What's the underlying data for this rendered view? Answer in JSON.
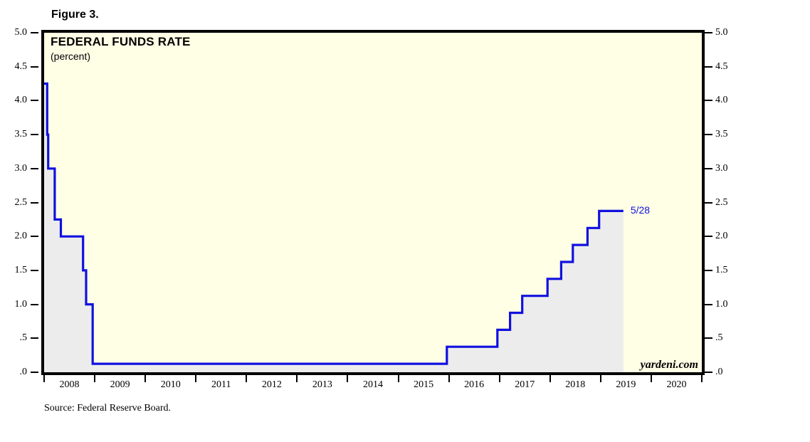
{
  "figure_label": "Figure 3.",
  "source_note": "Source: Federal Reserve Board.",
  "branding": {
    "watermark": "yardeni.com"
  },
  "chart_data": {
    "type": "line",
    "title": "FEDERAL FUNDS RATE",
    "subtitle": "(percent)",
    "line_style": "step-after",
    "grid": "off",
    "legend": "none",
    "x_domain": [
      2008,
      2021
    ],
    "y_domain": [
      0,
      5
    ],
    "y_tick_values": [
      5.0,
      4.5,
      4.0,
      3.5,
      3.0,
      2.5,
      2.0,
      1.5,
      1.0,
      0.5,
      0.0
    ],
    "y_tick_labels": [
      "5.0",
      "4.5",
      "4.0",
      "3.5",
      "3.0",
      "2.5",
      "2.0",
      "1.5",
      "1.0",
      ".5",
      ".0"
    ],
    "x_tick_years": [
      2008,
      2009,
      2010,
      2011,
      2012,
      2013,
      2014,
      2015,
      2016,
      2017,
      2018,
      2019,
      2020,
      2021
    ],
    "x_tick_labels": [
      "2008",
      "2009",
      "2010",
      "2011",
      "2012",
      "2013",
      "2014",
      "2015",
      "2016",
      "2017",
      "2018",
      "2019",
      "2020"
    ],
    "annotation": {
      "label": "5/28",
      "x": 2019.45,
      "y": 2.375
    },
    "colors": {
      "plot_background": "#FFFFE6",
      "border": "#000000",
      "line": "#1010E0",
      "area_fill": "#ECECEC",
      "annotation_text": "#1010E0"
    },
    "series": [
      {
        "name": "Federal funds rate",
        "x_end": 2019.45,
        "points": [
          {
            "x": 2008.0,
            "y": 4.25
          },
          {
            "x": 2008.06,
            "y": 3.5
          },
          {
            "x": 2008.08,
            "y": 3.0
          },
          {
            "x": 2008.21,
            "y": 2.25
          },
          {
            "x": 2008.33,
            "y": 2.0
          },
          {
            "x": 2008.77,
            "y": 1.5
          },
          {
            "x": 2008.83,
            "y": 1.0
          },
          {
            "x": 2008.96,
            "y": 0.125
          },
          {
            "x": 2015.96,
            "y": 0.375
          },
          {
            "x": 2016.96,
            "y": 0.625
          },
          {
            "x": 2017.21,
            "y": 0.875
          },
          {
            "x": 2017.45,
            "y": 1.125
          },
          {
            "x": 2017.95,
            "y": 1.375
          },
          {
            "x": 2018.22,
            "y": 1.625
          },
          {
            "x": 2018.45,
            "y": 1.875
          },
          {
            "x": 2018.74,
            "y": 2.125
          },
          {
            "x": 2018.97,
            "y": 2.375
          }
        ]
      }
    ]
  }
}
